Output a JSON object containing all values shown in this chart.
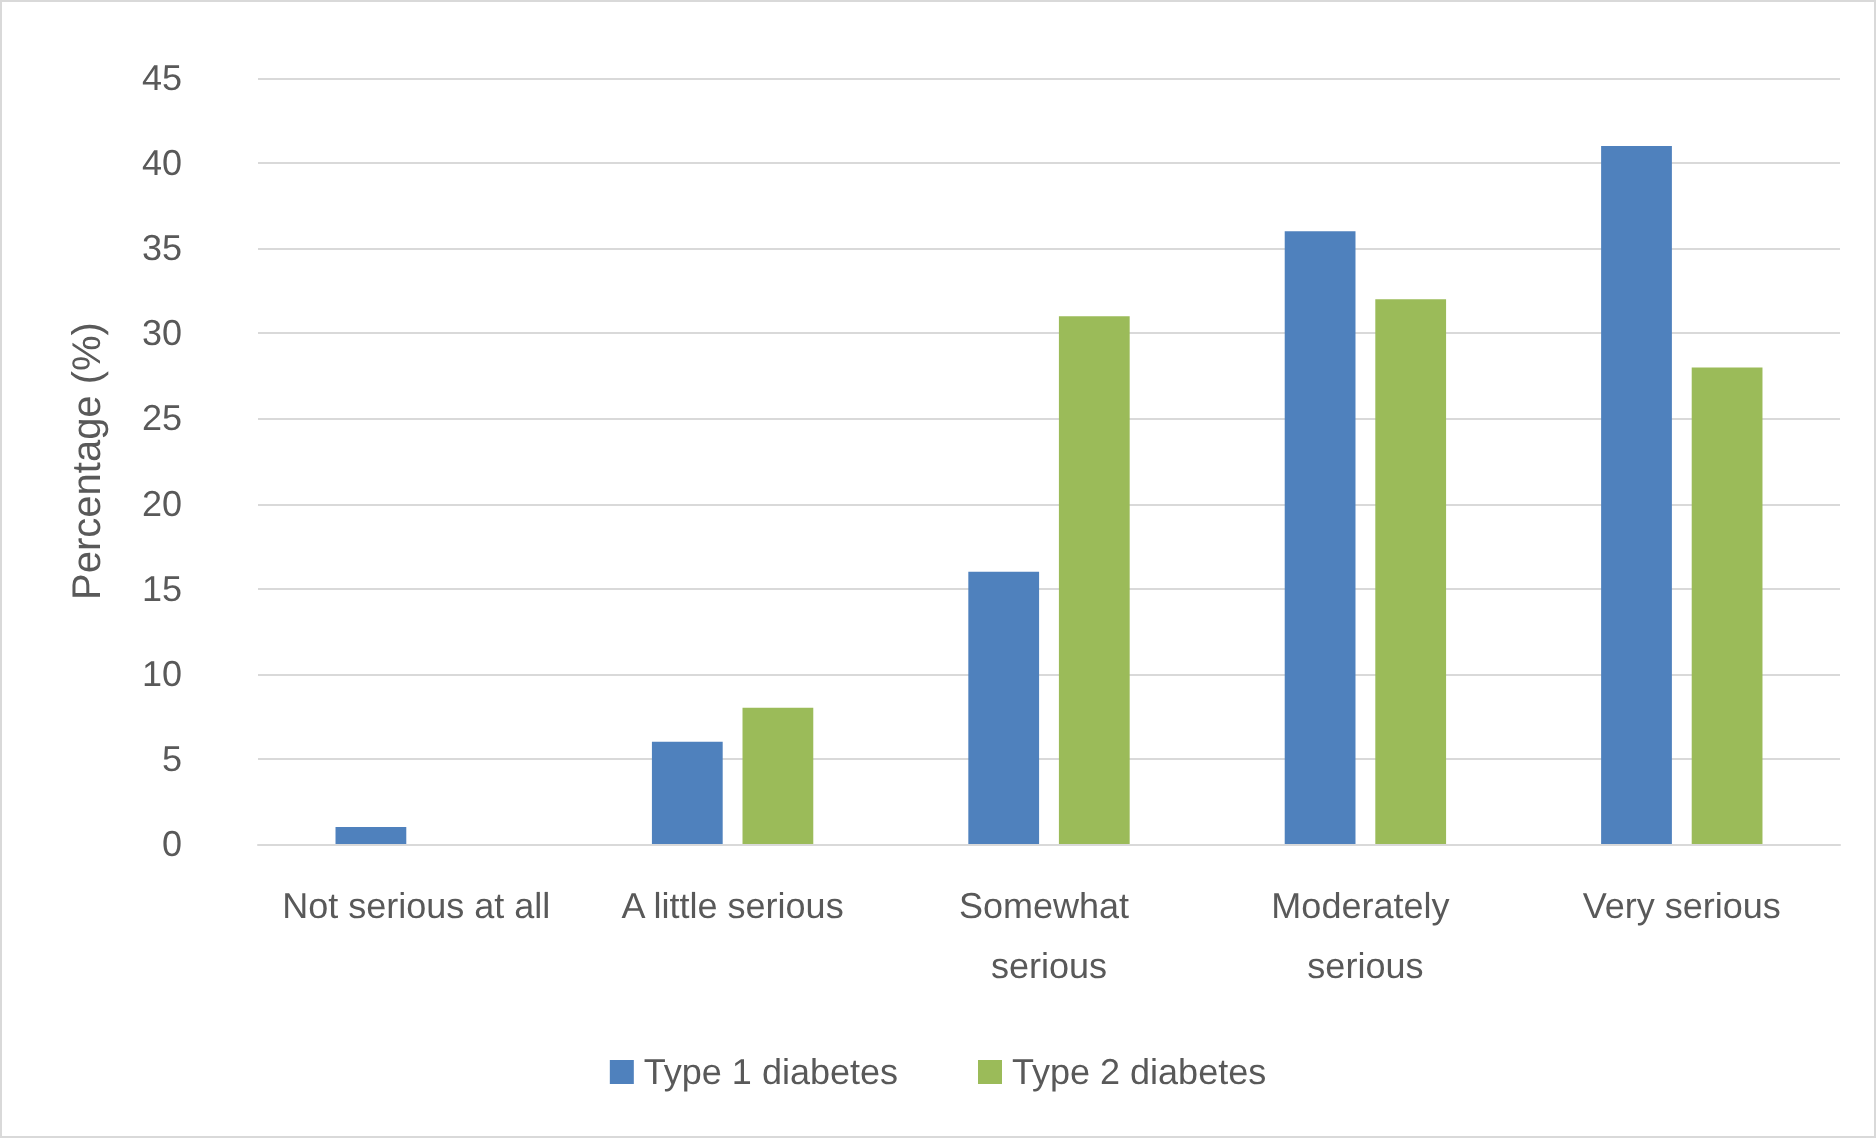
{
  "chart_data": {
    "type": "bar",
    "categories": [
      "Not serious at all",
      "A little serious",
      "Somewhat serious",
      "Moderately serious",
      "Very serious"
    ],
    "series": [
      {
        "name": "Type 1 diabetes",
        "color": "#4f81bd",
        "values": [
          1,
          6,
          16,
          36,
          41
        ]
      },
      {
        "name": "Type 2 diabetes",
        "color": "#9bbb59",
        "values": [
          0,
          8,
          31,
          32,
          28
        ]
      }
    ],
    "ylabel": "Percentage (%)",
    "ylim": [
      0,
      45
    ],
    "yticks": [
      0,
      5,
      10,
      15,
      20,
      25,
      30,
      35,
      40,
      45
    ],
    "grid": "y",
    "legend": "bottom"
  }
}
